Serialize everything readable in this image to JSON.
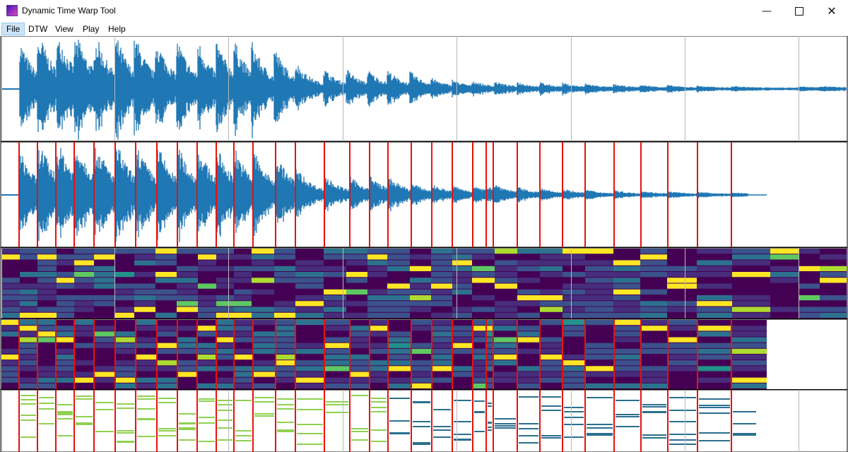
{
  "window": {
    "title": "Dynamic Time Warp Tool",
    "icon": "app-icon",
    "controls": [
      "minimize-icon",
      "maximize-icon",
      "close-icon"
    ]
  },
  "menu": {
    "items": [
      {
        "label": "File",
        "active": true
      },
      {
        "label": "DTW",
        "active": false
      },
      {
        "label": "View",
        "active": false
      },
      {
        "label": "Play",
        "active": false
      },
      {
        "label": "Help",
        "active": false
      }
    ]
  },
  "colors": {
    "waveform": "#1f77b4",
    "warp_line": "#e8120c",
    "grid": "#b8b8b8",
    "chroma_low": "#440154",
    "chroma_mid": "#21918c",
    "chroma_high": "#fde725",
    "piano_roll_ref": "#8fd14f",
    "piano_roll_query": "#2a6f8f"
  },
  "panels": [
    {
      "name": "reference-waveform"
    },
    {
      "name": "query-waveform"
    },
    {
      "name": "reference-chromagram"
    },
    {
      "name": "query-chromagram"
    },
    {
      "name": "piano-roll"
    }
  ]
}
